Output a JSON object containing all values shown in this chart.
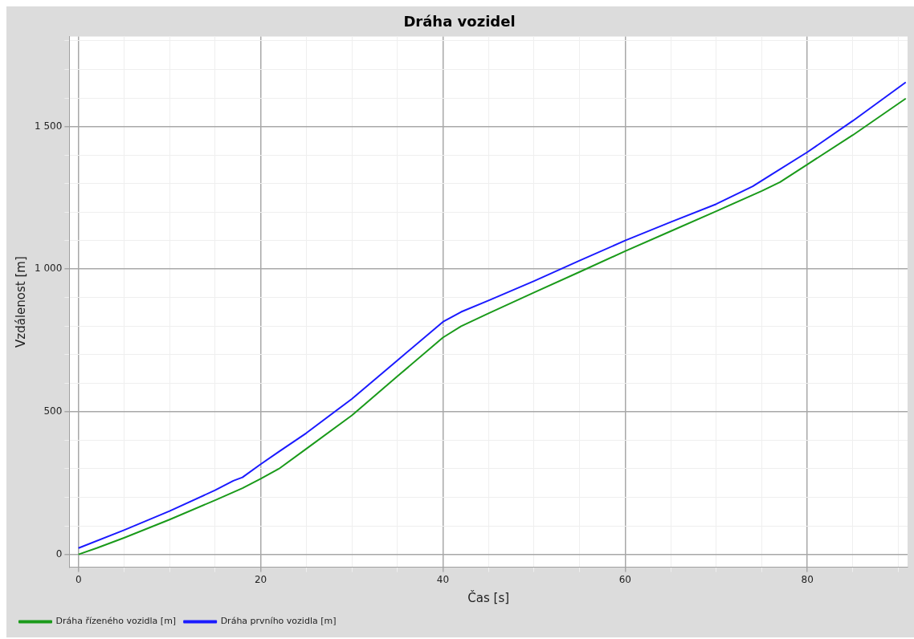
{
  "chart_data": {
    "type": "line",
    "title": "Dráha vozidel",
    "xlabel": "Čas [s]",
    "ylabel": "Vzdálenost [m]",
    "xlim": [
      -1,
      91
    ],
    "ylim": [
      -45,
      1815
    ],
    "xticks": [
      0,
      {
        "value": 5,
        "label": null
      },
      {
        "value": 10,
        "label": null
      },
      {
        "value": 15,
        "label": null
      },
      20,
      {
        "value": 25,
        "label": null
      },
      {
        "value": 30,
        "label": null
      },
      {
        "value": 35,
        "label": null
      },
      40,
      {
        "value": 45,
        "label": null
      },
      {
        "value": 50,
        "label": null
      },
      {
        "value": 55,
        "label": null
      },
      60,
      {
        "value": 65,
        "label": null
      },
      {
        "value": 70,
        "label": null
      },
      {
        "value": 75,
        "label": null
      },
      80,
      {
        "value": 85,
        "label": null
      },
      {
        "value": 90,
        "label": null
      }
    ],
    "yticks": [
      0,
      {
        "value": 100,
        "label": null
      },
      {
        "value": 200,
        "label": null
      },
      {
        "value": 300,
        "label": null
      },
      {
        "value": 400,
        "label": null
      },
      500,
      {
        "value": 600,
        "label": null
      },
      {
        "value": 700,
        "label": null
      },
      {
        "value": 800,
        "label": null
      },
      {
        "value": 900,
        "label": null
      },
      {
        "value": 1000,
        "label": "1 000"
      },
      {
        "value": 1100,
        "label": null
      },
      {
        "value": 1200,
        "label": null
      },
      {
        "value": 1300,
        "label": null
      },
      {
        "value": 1400,
        "label": null
      },
      {
        "value": 1500,
        "label": "1 500"
      },
      {
        "value": 1600,
        "label": null
      },
      {
        "value": 1700,
        "label": null
      },
      {
        "value": 1800,
        "label": null
      }
    ],
    "grid": true,
    "legend": "bottom left",
    "marker": "none",
    "line_style": "solid",
    "series": [
      {
        "name": "Dráha řízeného vozidla [m]",
        "color": "#1a9a1a",
        "x": [
          0,
          2,
          5,
          10,
          15,
          18,
          20,
          22,
          25,
          30,
          35,
          40,
          42,
          45,
          50,
          55,
          60,
          65,
          70,
          75,
          77,
          80,
          85,
          90.8
        ],
        "values": [
          0,
          22,
          58,
          122,
          190,
          232,
          265,
          300,
          370,
          487,
          624,
          760,
          800,
          845,
          918,
          990,
          1063,
          1133,
          1203,
          1274,
          1305,
          1367,
          1470,
          1598
        ]
      },
      {
        "name": "Dráha prvního vozidla [m]",
        "color": "#1a1aff",
        "x": [
          0,
          5,
          10,
          15,
          17,
          18,
          20,
          22,
          25,
          30,
          35,
          40,
          42,
          45,
          50,
          55,
          60,
          65,
          70,
          74,
          76,
          80,
          85,
          90.8
        ],
        "values": [
          22,
          85,
          152,
          225,
          258,
          270,
          316,
          360,
          425,
          545,
          680,
          815,
          850,
          890,
          958,
          1030,
          1100,
          1165,
          1228,
          1290,
          1330,
          1410,
          1520,
          1655
        ]
      }
    ]
  }
}
